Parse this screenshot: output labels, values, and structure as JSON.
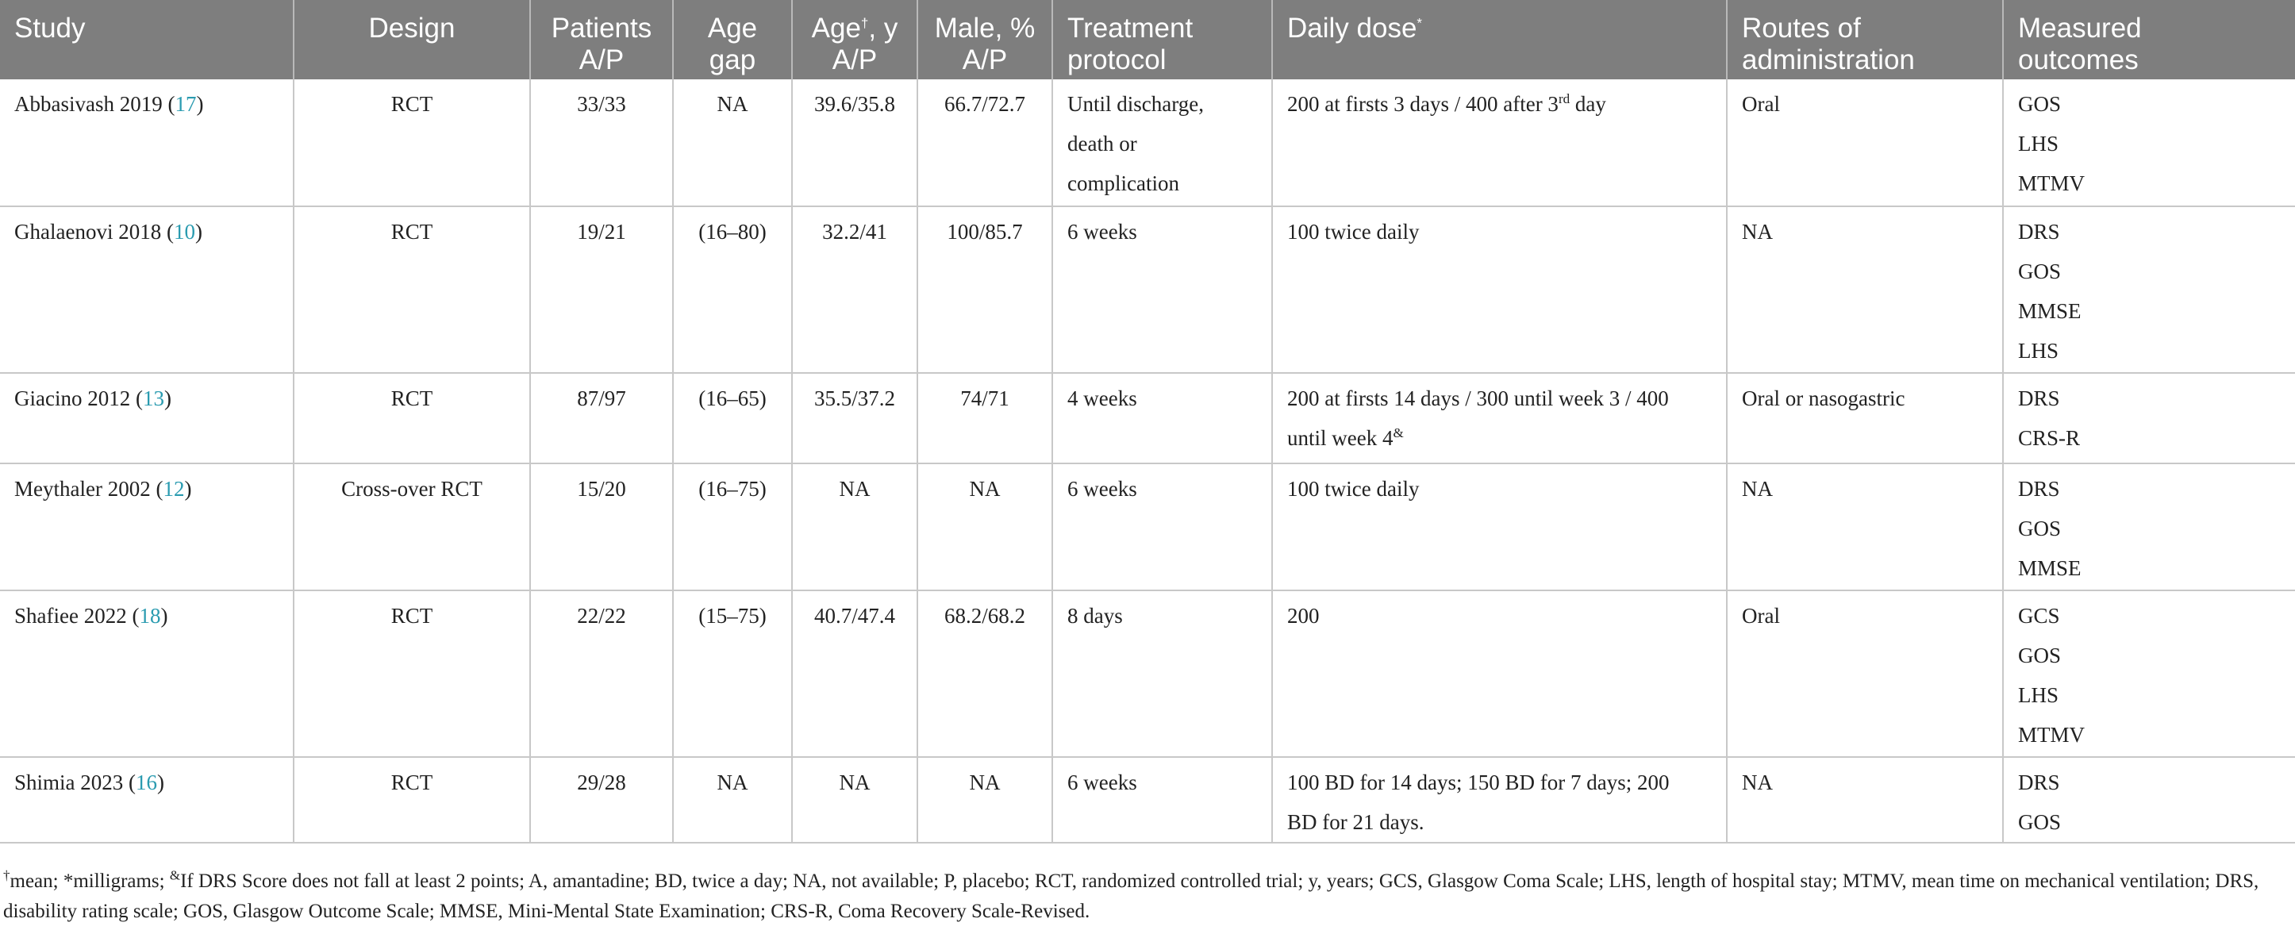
{
  "table": {
    "headers": {
      "study": "Study",
      "design": "Design",
      "patients_l1": "Patients",
      "patients_l2": "A/P",
      "age_gap_l1": "Age",
      "age_gap_l2": "gap",
      "age_l1": "Age",
      "age_sup": "†",
      "age_l1b": ", y",
      "age_l2": "A/P",
      "male_l1": "Male, %",
      "male_l2": "A/P",
      "treatment_l1": "Treatment",
      "treatment_l2": "protocol",
      "dose": "Daily dose",
      "dose_sup": "*",
      "routes_l1": "Routes of",
      "routes_l2": "administration",
      "outcomes_l1": "Measured",
      "outcomes_l2": "outcomes"
    },
    "rows": [
      {
        "study": "Abbasivash 2019 (",
        "ref": "17",
        "study_close": ")",
        "design": "RCT",
        "patients": "33/33",
        "age_gap": "NA",
        "age": "39.6/35.8",
        "male": "66.7/72.7",
        "treatment": [
          "Until discharge,",
          "death or",
          "complication"
        ],
        "dose_a": "200 at firsts 3 days / 400 after 3",
        "dose_sup": "rd",
        "dose_b": " day",
        "routes": "Oral",
        "outcomes": [
          "GOS",
          "LHS",
          "MTMV"
        ]
      },
      {
        "study": "Ghalaenovi 2018 (",
        "ref": "10",
        "study_close": ")",
        "design": "RCT",
        "patients": "19/21",
        "age_gap": "(16–80)",
        "age": "32.2/41",
        "male": "100/85.7",
        "treatment": [
          "6 weeks"
        ],
        "dose_a": "100 twice daily",
        "dose_sup": "",
        "dose_b": "",
        "routes": "NA",
        "outcomes": [
          "DRS",
          "GOS",
          "MMSE",
          "LHS"
        ]
      },
      {
        "study": "Giacino 2012 (",
        "ref": "13",
        "study_close": ")",
        "design": "RCT",
        "patients": "87/97",
        "age_gap": "(16–65)",
        "age": "35.5/37.2",
        "male": "74/71",
        "treatment": [
          "4 weeks"
        ],
        "dose_a": "200 at firsts 14 days / 300 until week 3 / 400",
        "dose_line2": "until week 4",
        "dose_sup": "&",
        "dose_b": "",
        "routes": "Oral or nasogastric",
        "outcomes": [
          "DRS",
          "CRS-R"
        ]
      },
      {
        "study": "Meythaler 2002 (",
        "ref": "12",
        "study_close": ")",
        "design": "Cross-over RCT",
        "patients": "15/20",
        "age_gap": "(16–75)",
        "age": "NA",
        "male": "NA",
        "treatment": [
          "6 weeks"
        ],
        "dose_a": "100 twice daily",
        "dose_sup": "",
        "dose_b": "",
        "routes": "NA",
        "outcomes": [
          "DRS",
          "GOS",
          "MMSE"
        ]
      },
      {
        "study": "Shafiee 2022 (",
        "ref": "18",
        "study_close": ")",
        "design": "RCT",
        "patients": "22/22",
        "age_gap": "(15–75)",
        "age": "40.7/47.4",
        "male": "68.2/68.2",
        "treatment": [
          "8 days"
        ],
        "dose_a": "200",
        "dose_sup": "",
        "dose_b": "",
        "routes": "Oral",
        "outcomes": [
          "GCS",
          "GOS",
          "LHS",
          "MTMV"
        ]
      },
      {
        "study": "Shimia 2023 (",
        "ref": "16",
        "study_close": ")",
        "design": "RCT",
        "patients": "29/28",
        "age_gap": "NA",
        "age": "NA",
        "male": "NA",
        "treatment": [
          "6 weeks"
        ],
        "dose_a": "100 BD for 14 days; 150 BD for 7 days; 200",
        "dose_line2": "BD for 21 days.",
        "dose_sup": "",
        "dose_b": "",
        "routes": "NA",
        "outcomes": [
          "DRS",
          "GOS"
        ]
      }
    ]
  },
  "footnote": {
    "sup1": "†",
    "t1": "mean; *milligrams; ",
    "sup2": "&",
    "t2": "If DRS Score does not fall at least 2 points; A, amantadine; BD, twice a day; NA, not available; P, placebo; RCT, randomized controlled trial; y, years; GCS, Glasgow Coma Scale; LHS, length of hospital stay; MTMV, mean time on mechanical",
    "t3": "ventilation; DRS, disability rating scale; GOS, Glasgow Outcome Scale; MMSE, Mini-Mental State Examination; CRS-R, Coma Recovery Scale-Revised."
  }
}
